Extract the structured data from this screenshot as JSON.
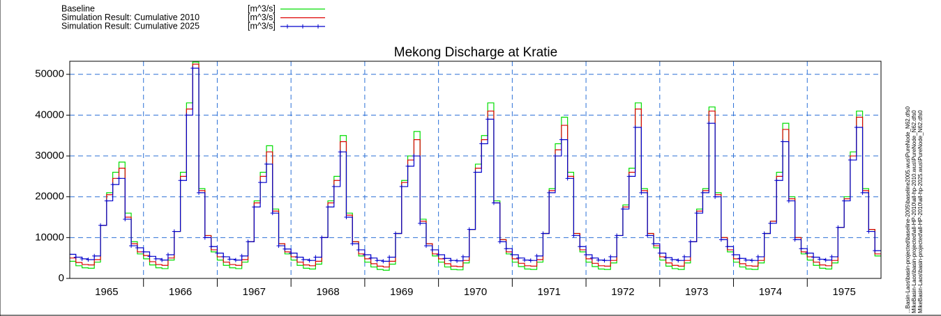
{
  "chart_data": {
    "type": "line",
    "title": "Mekong Discharge at Kratie",
    "step": true,
    "unit": "[m^3/s]",
    "x": [
      1965,
      1965.083,
      1965.167,
      1965.25,
      1965.333,
      1965.417,
      1965.5,
      1965.583,
      1965.667,
      1965.75,
      1965.833,
      1965.917,
      1966,
      1966.083,
      1966.167,
      1966.25,
      1966.333,
      1966.417,
      1966.5,
      1966.583,
      1966.667,
      1966.75,
      1966.833,
      1966.917,
      1967,
      1967.083,
      1967.167,
      1967.25,
      1967.333,
      1967.417,
      1967.5,
      1967.583,
      1967.667,
      1967.75,
      1967.833,
      1967.917,
      1968,
      1968.083,
      1968.167,
      1968.25,
      1968.333,
      1968.417,
      1968.5,
      1968.583,
      1968.667,
      1968.75,
      1968.833,
      1968.917,
      1969,
      1969.083,
      1969.167,
      1969.25,
      1969.333,
      1969.417,
      1969.5,
      1969.583,
      1969.667,
      1969.75,
      1969.833,
      1969.917,
      1970,
      1970.083,
      1970.167,
      1970.25,
      1970.333,
      1970.417,
      1970.5,
      1970.583,
      1970.667,
      1970.75,
      1970.833,
      1970.917,
      1971,
      1971.083,
      1971.167,
      1971.25,
      1971.333,
      1971.417,
      1971.5,
      1971.583,
      1971.667,
      1971.75,
      1971.833,
      1971.917,
      1972,
      1972.083,
      1972.167,
      1972.25,
      1972.333,
      1972.417,
      1972.5,
      1972.583,
      1972.667,
      1972.75,
      1972.833,
      1972.917,
      1973,
      1973.083,
      1973.167,
      1973.25,
      1973.333,
      1973.417,
      1973.5,
      1973.583,
      1973.667,
      1973.75,
      1973.833,
      1973.917,
      1974,
      1974.083,
      1974.167,
      1974.25,
      1974.333,
      1974.417,
      1974.5,
      1974.583,
      1974.667,
      1974.75,
      1974.833,
      1974.917,
      1975,
      1975.083,
      1975.167,
      1975.25,
      1975.333,
      1975.417,
      1975.5,
      1975.583,
      1975.667,
      1975.75,
      1975.833,
      1975.917
    ],
    "series": [
      {
        "name": "Baseline",
        "color": "#00dd00",
        "marker": false,
        "values": [
          4200,
          3100,
          2600,
          2500,
          4000,
          13000,
          21000,
          26000,
          28500,
          16000,
          9000,
          6000,
          4800,
          3300,
          2600,
          2400,
          4500,
          11500,
          26000,
          43000,
          53000,
          22000,
          10500,
          6500,
          4500,
          3200,
          2600,
          2400,
          4000,
          9000,
          19000,
          26000,
          32500,
          17000,
          8500,
          6000,
          4500,
          3200,
          2500,
          2300,
          3500,
          10000,
          19000,
          25000,
          35000,
          16000,
          9000,
          5500,
          4000,
          2800,
          2200,
          2000,
          3500,
          11000,
          24000,
          30000,
          36000,
          14500,
          8500,
          5500,
          4000,
          2800,
          2200,
          2100,
          3800,
          12000,
          28000,
          35000,
          43000,
          19000,
          9500,
          6000,
          4000,
          2900,
          2300,
          2200,
          4000,
          11000,
          22000,
          33000,
          39500,
          26000,
          11000,
          6500,
          4000,
          2900,
          2300,
          2200,
          3800,
          10500,
          18000,
          27000,
          43000,
          22000,
          11000,
          7500,
          4500,
          3000,
          2400,
          2200,
          3800,
          9000,
          17000,
          22000,
          42000,
          21000,
          10000,
          6500,
          4000,
          2800,
          2300,
          2200,
          3800,
          11000,
          14000,
          26000,
          38000,
          20000,
          10000,
          6000,
          4500,
          3200,
          2500,
          2300,
          3800,
          12500,
          20000,
          31000,
          41000,
          22000,
          12000,
          5500
        ]
      },
      {
        "name": "Simulation Result: Cumulative  2010",
        "color": "#dd0000",
        "marker": false,
        "values": [
          5000,
          3900,
          3400,
          3300,
          4600,
          13000,
          20500,
          24500,
          27000,
          15000,
          8500,
          6500,
          5600,
          4100,
          3400,
          3200,
          5000,
          11500,
          25000,
          41500,
          52500,
          21500,
          10500,
          7000,
          5300,
          4000,
          3400,
          3200,
          4600,
          9000,
          18500,
          25000,
          31000,
          16500,
          8500,
          6500,
          5300,
          4000,
          3300,
          3100,
          4200,
          10000,
          18500,
          24000,
          33500,
          15500,
          9000,
          6000,
          4800,
          3600,
          3000,
          2800,
          4200,
          11000,
          23500,
          29000,
          34000,
          14000,
          8500,
          6000,
          4800,
          3600,
          3000,
          2900,
          4400,
          12000,
          27000,
          34000,
          41000,
          18500,
          9500,
          6500,
          4800,
          3700,
          3100,
          3000,
          4600,
          11000,
          21500,
          31500,
          37500,
          25000,
          11000,
          7000,
          4800,
          3700,
          3100,
          3000,
          4400,
          10500,
          17500,
          26000,
          41500,
          21500,
          11000,
          8000,
          5300,
          3800,
          3200,
          3000,
          4400,
          9000,
          16500,
          21500,
          41000,
          20500,
          10000,
          7000,
          4800,
          3600,
          3100,
          3000,
          4400,
          11000,
          14000,
          25000,
          36500,
          19500,
          10000,
          6500,
          5300,
          4000,
          3300,
          3100,
          4400,
          12500,
          19500,
          30000,
          39500,
          21500,
          12000,
          6000
        ]
      },
      {
        "name": "Simulation Result: Cumulative  2025",
        "color": "#0000cc",
        "marker": true,
        "values": [
          5900,
          5200,
          4800,
          4600,
          5500,
          13000,
          19000,
          23000,
          24500,
          14500,
          8000,
          7500,
          6500,
          5400,
          4800,
          4500,
          5800,
          11500,
          24000,
          40000,
          51500,
          21000,
          10000,
          7800,
          6200,
          5300,
          4700,
          4500,
          5500,
          9000,
          17500,
          23500,
          28000,
          16000,
          8000,
          7200,
          6200,
          5200,
          4600,
          4400,
          5200,
          10000,
          17500,
          22500,
          31000,
          15000,
          8500,
          7000,
          5800,
          5000,
          4400,
          4200,
          5200,
          11000,
          22500,
          27500,
          30000,
          13500,
          8000,
          7000,
          5800,
          4900,
          4400,
          4300,
          5300,
          12000,
          26000,
          33000,
          39000,
          18500,
          9000,
          7300,
          5800,
          5000,
          4500,
          4400,
          5500,
          11000,
          21000,
          30000,
          34000,
          24500,
          10500,
          7800,
          5800,
          5000,
          4500,
          4400,
          5300,
          10500,
          17000,
          25000,
          37000,
          21000,
          10500,
          8500,
          6200,
          5100,
          4600,
          4400,
          5300,
          9000,
          16000,
          21000,
          38000,
          20000,
          9500,
          7800,
          5800,
          4900,
          4500,
          4400,
          5300,
          11000,
          13500,
          24000,
          33500,
          19000,
          9500,
          7300,
          6200,
          5200,
          4700,
          4500,
          5300,
          12500,
          19000,
          29000,
          37000,
          21000,
          11500,
          6800
        ]
      }
    ],
    "xlim": [
      1965,
      1976
    ],
    "xticks": [
      {
        "value": 1965.5,
        "label": "1965"
      },
      {
        "value": 1966.5,
        "label": "1966"
      },
      {
        "value": 1967.5,
        "label": "1967"
      },
      {
        "value": 1968.5,
        "label": "1968"
      },
      {
        "value": 1969.5,
        "label": "1969"
      },
      {
        "value": 1970.5,
        "label": "1970"
      },
      {
        "value": 1971.5,
        "label": "1971"
      },
      {
        "value": 1972.5,
        "label": "1972"
      },
      {
        "value": 1973.5,
        "label": "1973"
      },
      {
        "value": 1974.5,
        "label": "1974"
      },
      {
        "value": 1975.5,
        "label": "1975"
      }
    ],
    "xgrid": [
      1966,
      1967,
      1968,
      1969,
      1970,
      1971,
      1972,
      1973,
      1974,
      1975
    ],
    "ylim": [
      0,
      53200
    ],
    "yticks": [
      0,
      10000,
      20000,
      30000,
      40000,
      50000
    ],
    "grid": true,
    "legend": "top-left",
    "file_paths": [
      "...Basin-Laos\\basin-projected\\baseline-2005\\baseline2005.wus\\PureNode_N62.dfs0",
      "MikeBasin-Laos\\basin-projected\\all-HP-2010\\all-hp-2010.wus\\PureNode_N62.dfs0",
      "MikeBasin-Laos\\basin-projected\\all-HP-2010\\all-hp-2025.wus\\PureNode_N62.dfs0"
    ]
  }
}
